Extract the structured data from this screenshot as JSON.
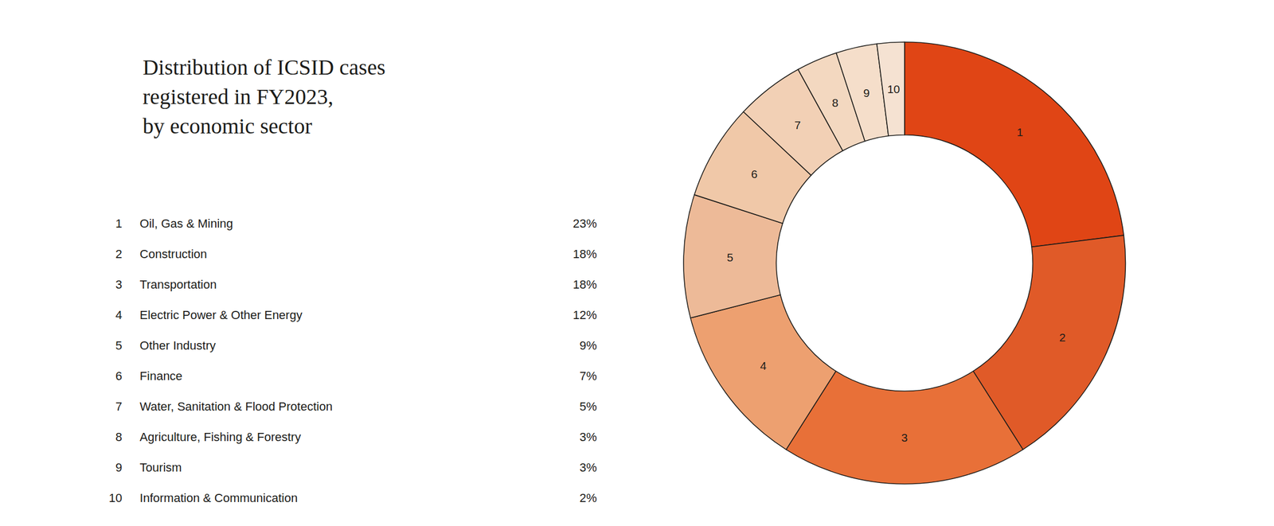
{
  "chart_data": {
    "type": "pie",
    "title": "Distribution of ICSID cases\nregistered in FY2023,\nby economic sector",
    "categories": [
      "Oil, Gas & Mining",
      "Construction",
      "Transportation",
      "Electric Power & Other Energy",
      "Other Industry",
      "Finance",
      "Water, Sanitation & Flood Protection",
      "Agriculture, Fishing & Forestry",
      "Tourism",
      "Information & Communication"
    ],
    "slice_labels": [
      "1",
      "2",
      "3",
      "4",
      "5",
      "6",
      "7",
      "8",
      "9",
      "10"
    ],
    "values": [
      23,
      18,
      18,
      12,
      9,
      7,
      5,
      3,
      3,
      2
    ],
    "value_labels": [
      "23%",
      "18%",
      "18%",
      "12%",
      "9%",
      "7%",
      "5%",
      "3%",
      "3%",
      "2%"
    ],
    "colors": [
      "#E04515",
      "#E05A28",
      "#E87038",
      "#EDA070",
      "#EDBA98",
      "#F0C8A8",
      "#F2D0B5",
      "#F3D8C0",
      "#F5DECA",
      "#F5E2D2"
    ]
  }
}
